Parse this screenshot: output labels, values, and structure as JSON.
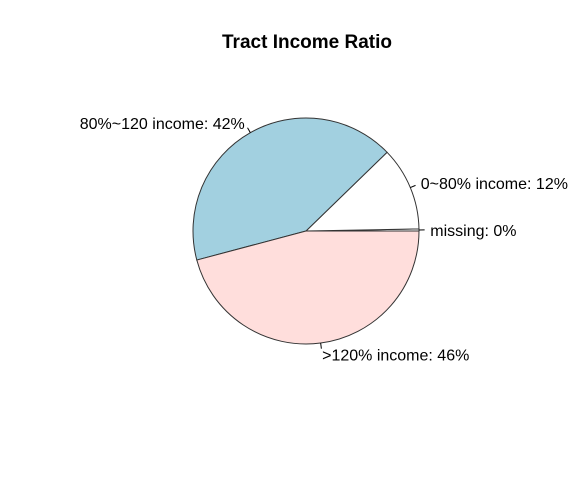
{
  "chart_data": {
    "type": "pie",
    "title": "Tract Income Ratio",
    "slices": [
      {
        "label": "missing: 0%",
        "category": "missing",
        "value": 0.3,
        "color": "#ffffff"
      },
      {
        "label": "0~80% income: 12%",
        "category": "0~80% income",
        "value": 12,
        "color": "#ffffff"
      },
      {
        "label": "80%~120 income: 42%",
        "category": "80%~120 income",
        "value": 42,
        "color": "#a2d0e0"
      },
      {
        "label": ">120% income: 46%",
        "category": ">120% income",
        "value": 46,
        "color": "#ffdedc"
      }
    ],
    "start_angle_deg": 0,
    "direction": "counterclockwise",
    "border_color": "#333333"
  }
}
